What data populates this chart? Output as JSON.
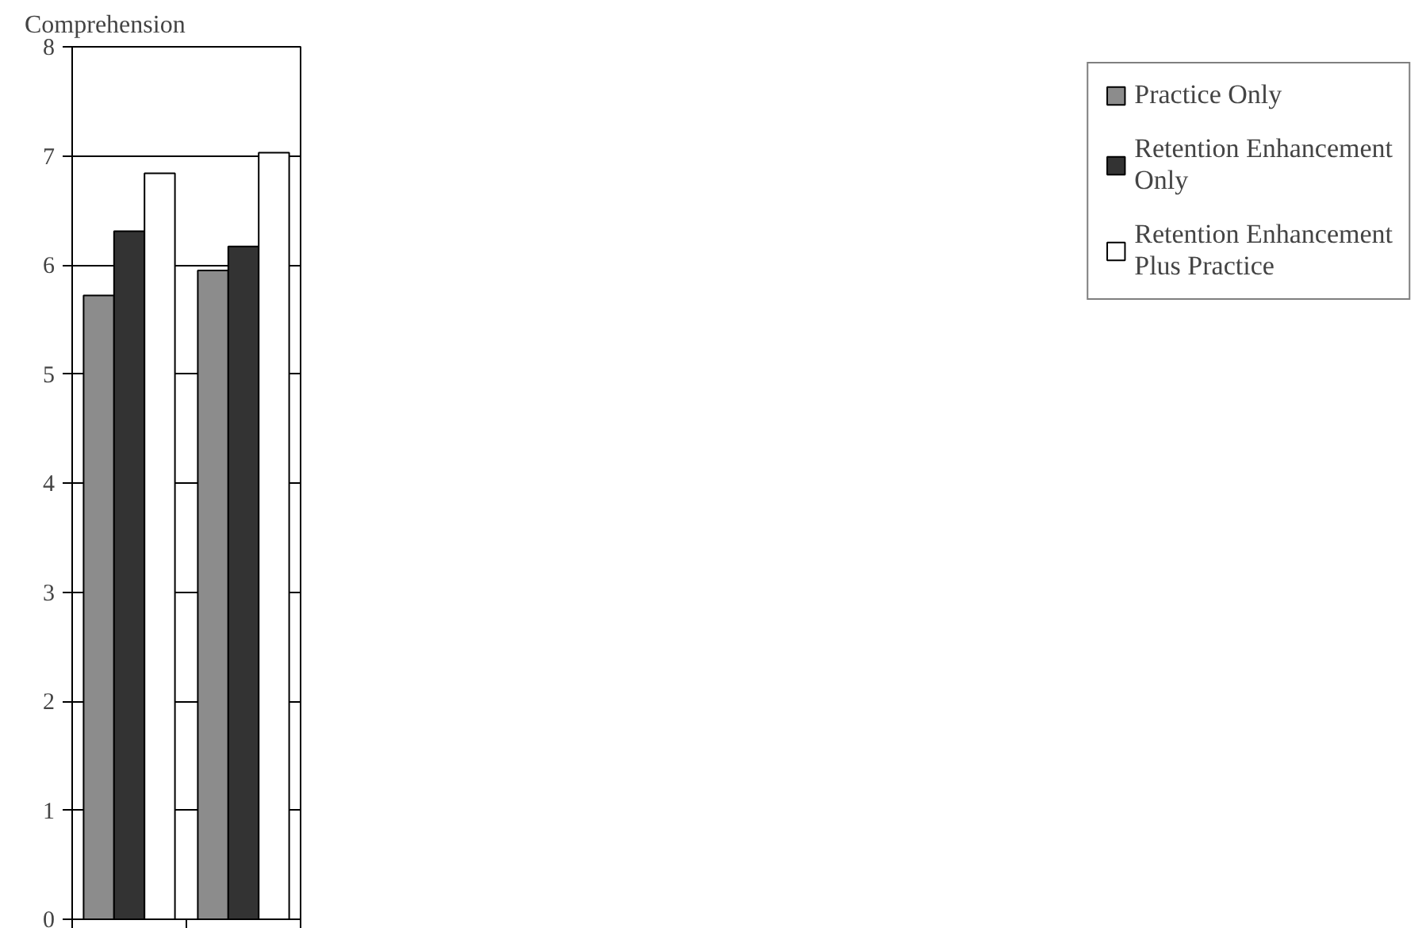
{
  "chart_data": {
    "type": "bar",
    "ylabel": "Comprehension",
    "categories": [
      null,
      null
    ],
    "series": [
      {
        "name": "Practice Only",
        "color": "#8c8c8c",
        "values": [
          5.72,
          5.95
        ]
      },
      {
        "name": "Retention Enhancement Only",
        "color": "#333333",
        "values": [
          6.31,
          6.17
        ]
      },
      {
        "name": "Retention Enhancement Plus Practice",
        "color": "#ffffff",
        "values": [
          6.84,
          7.03
        ]
      }
    ],
    "ylim": [
      0,
      8
    ],
    "yticks": [
      0,
      1,
      2,
      3,
      4,
      5,
      6,
      7,
      8
    ],
    "grid": "y",
    "legend": "right"
  }
}
